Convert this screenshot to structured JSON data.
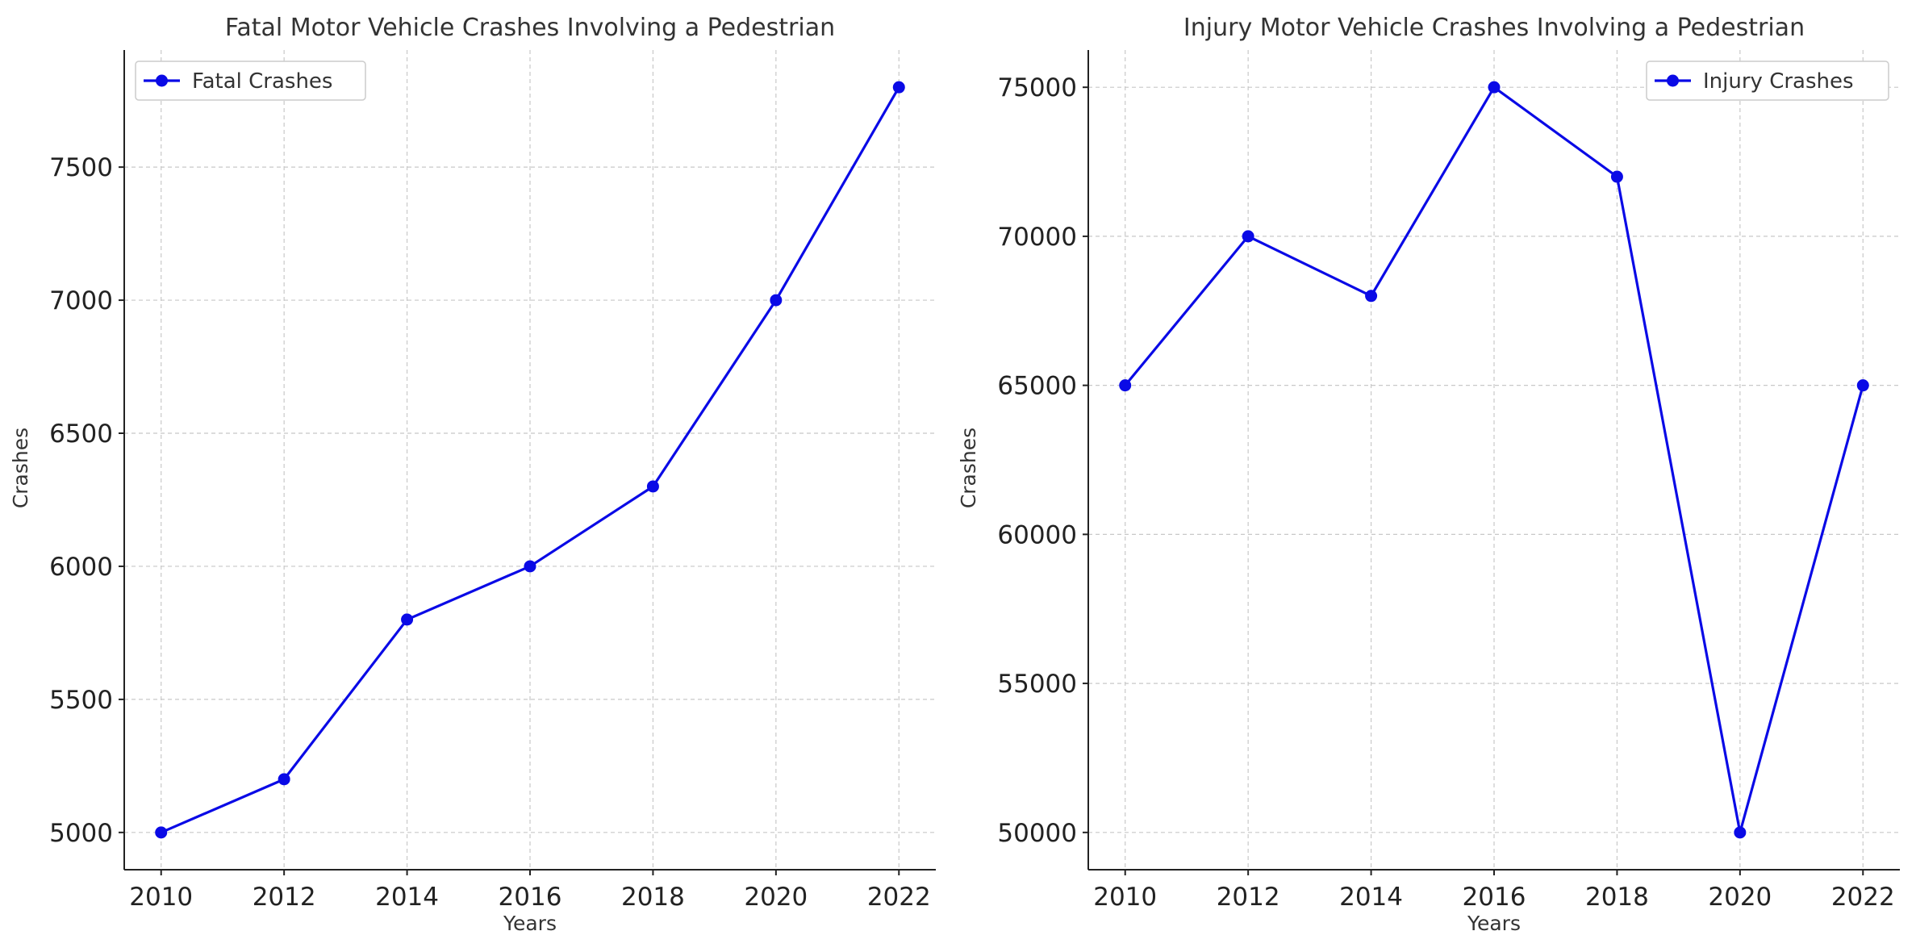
{
  "colors": {
    "series": "#0a0ae6",
    "grid": "#c8c8c8",
    "axis": "#222222"
  },
  "chart_data": [
    {
      "type": "line",
      "title": "Fatal Motor Vehicle Crashes Involving a Pedestrian",
      "xlabel": "Years",
      "ylabel": "Crashes",
      "x": [
        2010,
        2012,
        2014,
        2016,
        2018,
        2020,
        2022
      ],
      "xticks": [
        2010,
        2012,
        2014,
        2016,
        2018,
        2020,
        2022
      ],
      "yticks": [
        5000,
        5500,
        6000,
        6500,
        7000,
        7500
      ],
      "xlim": [
        2009.4,
        2022.6
      ],
      "ylim": [
        4860,
        7940
      ],
      "grid": true,
      "legend_position": "top-left",
      "series": [
        {
          "name": "Fatal Crashes",
          "values": [
            5000,
            5200,
            5800,
            6000,
            6300,
            7000,
            7800
          ]
        }
      ]
    },
    {
      "type": "line",
      "title": "Injury Motor Vehicle Crashes Involving a Pedestrian",
      "xlabel": "Years",
      "ylabel": "Crashes",
      "x": [
        2010,
        2012,
        2014,
        2016,
        2018,
        2020,
        2022
      ],
      "xticks": [
        2010,
        2012,
        2014,
        2016,
        2018,
        2020,
        2022
      ],
      "yticks": [
        50000,
        55000,
        60000,
        65000,
        70000,
        75000
      ],
      "xlim": [
        2009.4,
        2022.6
      ],
      "ylim": [
        48750,
        76250
      ],
      "grid": true,
      "legend_position": "top-right",
      "series": [
        {
          "name": "Injury Crashes",
          "values": [
            65000,
            70000,
            68000,
            75000,
            72000,
            50000,
            65000
          ]
        }
      ]
    }
  ]
}
